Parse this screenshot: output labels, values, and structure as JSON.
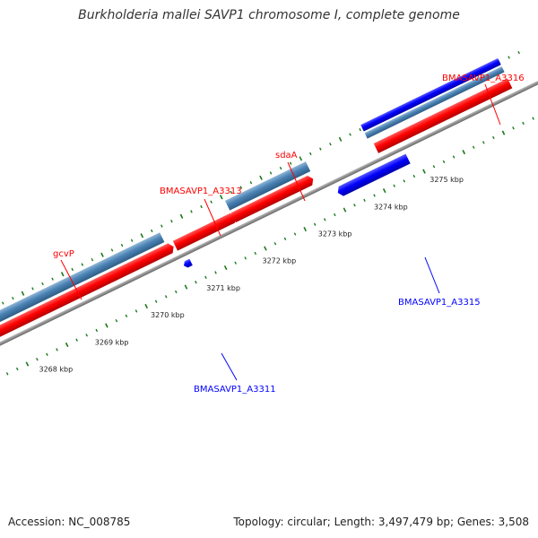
{
  "title": "Burkholderia mallei SAVP1 chromosome I, complete genome",
  "footer": {
    "accession": "Accession: NC_008785",
    "summary": "Topology: circular; Length: 3,497,479 bp; Genes: 3,508"
  },
  "colors": {
    "forward_strand": "#ff0000",
    "reverse_strand": "#0000ff",
    "rna_or_other": "#4a82b4",
    "backbone": "#888888",
    "ticks": "#1a7a1a"
  },
  "ticks": {
    "unit": "kbp",
    "labels": [
      "3268 kbp",
      "3269 kbp",
      "3270 kbp",
      "3271 kbp",
      "3272 kbp",
      "3273 kbp",
      "3274 kbp",
      "3275 kbp"
    ]
  },
  "genes": [
    {
      "label": "gcvP",
      "strand": "forward"
    },
    {
      "label": "BMASAVP1_A3311",
      "strand": "reverse"
    },
    {
      "label": "BMASAVP1_A3313",
      "strand": "forward"
    },
    {
      "label": "sdaA",
      "strand": "forward"
    },
    {
      "label": "BMASAVP1_A3315",
      "strand": "reverse"
    },
    {
      "label": "BMASAVP1_A3316",
      "strand": "forward"
    }
  ]
}
